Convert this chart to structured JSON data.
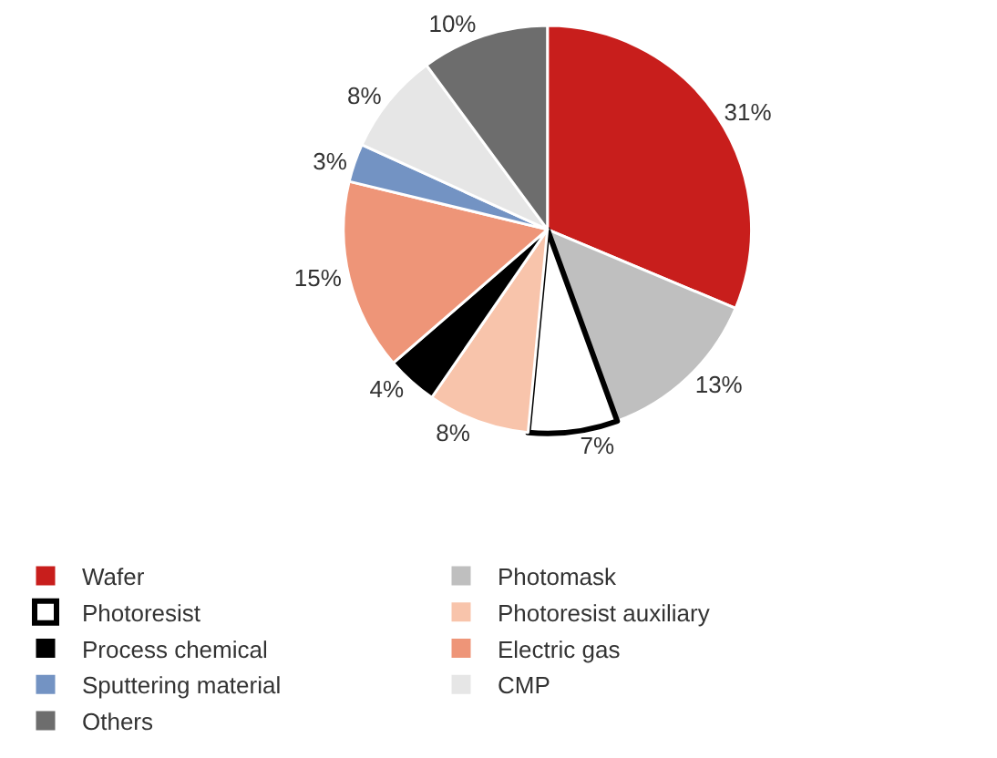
{
  "chart_data": {
    "type": "pie",
    "categories": [
      "Wafer",
      "Photomask",
      "Photoresist",
      "Photoresist auxiliary",
      "Process chemical",
      "Electric gas",
      "Sputtering material",
      "CMP",
      "Others"
    ],
    "values": [
      31,
      13,
      7,
      8,
      4,
      15,
      3,
      8,
      10
    ],
    "value_labels": [
      "31%",
      "13%",
      "7%",
      "8%",
      "4%",
      "15%",
      "3%",
      "8%",
      "10%"
    ],
    "colors": [
      "#c81e1c",
      "#bfbfbf",
      "#ffffff",
      "#f8c4ab",
      "#000000",
      "#ee9578",
      "#7393c3",
      "#e6e6e6",
      "#6d6d6d"
    ],
    "legend": "bottom"
  }
}
